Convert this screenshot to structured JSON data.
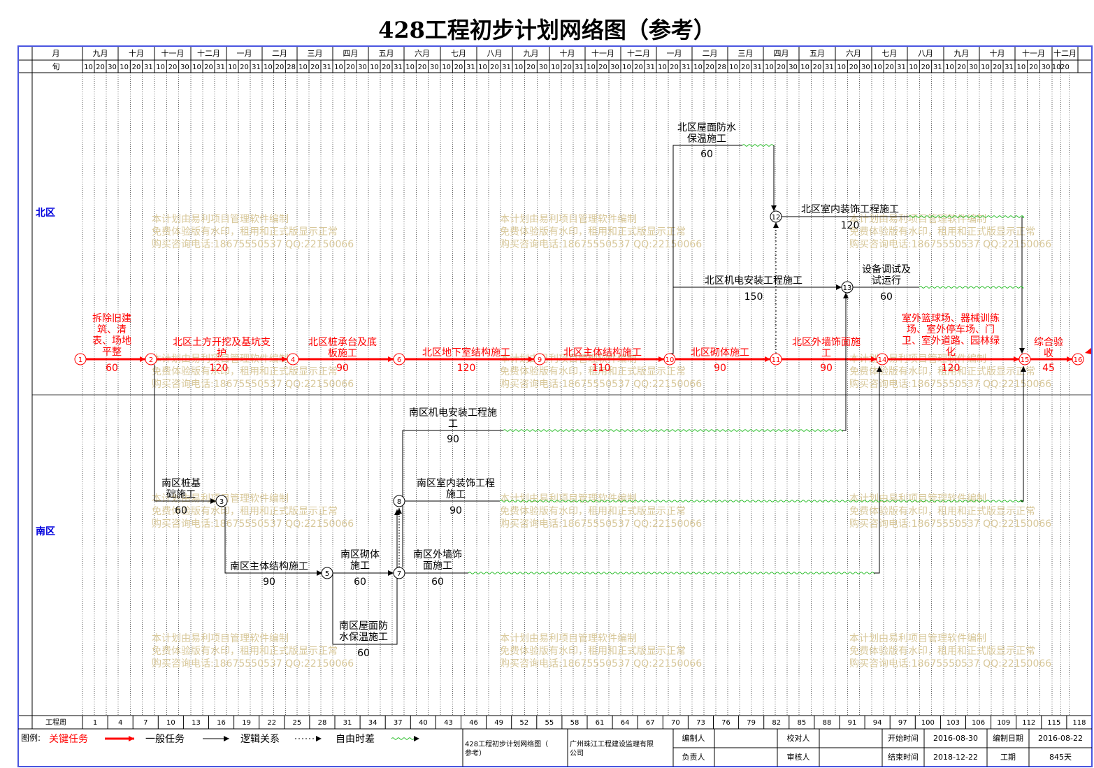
{
  "title": "428工程初步计划网络图（参考）",
  "colors": {
    "critical": "#ff0000",
    "normal": "#000000",
    "float": "#22bb22",
    "frame": "#4a55e0",
    "watermark": "#d8c89a",
    "zone_label": "#0000dd"
  },
  "header": {
    "month_row_label": "月",
    "ten_row_label": "旬",
    "months": [
      "九月",
      "十月",
      "十一月",
      "十二月",
      "一月",
      "二月",
      "三月",
      "四月",
      "五月",
      "六月",
      "七月",
      "八月",
      "九月",
      "十月",
      "十一月",
      "十二月",
      "一月",
      "二月",
      "三月",
      "四月",
      "五月",
      "六月",
      "七月",
      "八月",
      "九月",
      "十月",
      "十一月",
      "十二月"
    ],
    "tens": [
      [
        "10",
        "20",
        "30"
      ],
      [
        "10",
        "20",
        "31"
      ],
      [
        "10",
        "20",
        "30"
      ],
      [
        "10",
        "20",
        "31"
      ],
      [
        "10",
        "20",
        "31"
      ],
      [
        "10",
        "20",
        "28"
      ],
      [
        "10",
        "20",
        "31"
      ],
      [
        "10",
        "20",
        "30"
      ],
      [
        "10",
        "20",
        "31"
      ],
      [
        "10",
        "20",
        "30"
      ],
      [
        "10",
        "20",
        "31"
      ],
      [
        "10",
        "20",
        "31"
      ],
      [
        "10",
        "20",
        "30"
      ],
      [
        "10",
        "20",
        "31"
      ],
      [
        "10",
        "20",
        "30"
      ],
      [
        "10",
        "20",
        "31"
      ],
      [
        "10",
        "20",
        "31"
      ],
      [
        "10",
        "20",
        "28"
      ],
      [
        "10",
        "20",
        "31"
      ],
      [
        "10",
        "20",
        "30"
      ],
      [
        "10",
        "20",
        "31"
      ],
      [
        "10",
        "20",
        "30"
      ],
      [
        "10",
        "20",
        "31"
      ],
      [
        "10",
        "20",
        "31"
      ],
      [
        "10",
        "20",
        "30"
      ],
      [
        "10",
        "20",
        "31"
      ],
      [
        "10",
        "20",
        "30"
      ],
      [
        "10",
        "20"
      ]
    ]
  },
  "zones": {
    "north": "北区",
    "south": "南区"
  },
  "week_row": {
    "label": "工程周",
    "weeks": [
      "1",
      "4",
      "7",
      "10",
      "13",
      "16",
      "19",
      "22",
      "25",
      "28",
      "31",
      "34",
      "37",
      "40",
      "43",
      "46",
      "49",
      "52",
      "55",
      "58",
      "61",
      "64",
      "67",
      "70",
      "73",
      "76",
      "79",
      "82",
      "85",
      "88",
      "91",
      "94",
      "97",
      "100",
      "103",
      "106",
      "109",
      "112",
      "115",
      "118"
    ]
  },
  "watermark_lines": [
    "本计划由易利项目管理软件编制",
    "免费体验版有水印，租用和正式版显示正常",
    "购买咨询电话:18675550537 QQ:22150066"
  ],
  "tasks": [
    {
      "id": "t1",
      "name": [
        "拆除旧建",
        "筑、清",
        "表、场地",
        "平整"
      ],
      "dur": "60",
      "critical": true
    },
    {
      "id": "t2",
      "name": [
        "北区土方开挖及基坑支",
        "护"
      ],
      "dur": "120",
      "critical": true
    },
    {
      "id": "t3",
      "name": [
        "北区桩承台及底",
        "板施工"
      ],
      "dur": "90",
      "critical": true
    },
    {
      "id": "t4",
      "name": [
        "北区地下室结构施工"
      ],
      "dur": "120",
      "critical": true
    },
    {
      "id": "t5",
      "name": [
        "北区主体结构施工"
      ],
      "dur": "110",
      "critical": true
    },
    {
      "id": "t6",
      "name": [
        "北区砌体施工"
      ],
      "dur": "90",
      "critical": true
    },
    {
      "id": "t7",
      "name": [
        "北区外墙饰面施",
        "工"
      ],
      "dur": "90",
      "critical": true
    },
    {
      "id": "t8",
      "name": [
        "室外篮球场、器械训练",
        "场、室外停车场、门",
        "卫、室外道路、园林绿",
        "化"
      ],
      "dur": "120",
      "critical": true
    },
    {
      "id": "t9",
      "name": [
        "综合验",
        "收"
      ],
      "dur": "45",
      "critical": true
    },
    {
      "id": "t10",
      "name": [
        "北区屋面防水",
        "保温施工"
      ],
      "dur": "60",
      "critical": false
    },
    {
      "id": "t11",
      "name": [
        "北区室内装饰工程施工"
      ],
      "dur": "120",
      "critical": false
    },
    {
      "id": "t12",
      "name": [
        "北区机电安装工程施工"
      ],
      "dur": "150",
      "critical": false
    },
    {
      "id": "t13",
      "name": [
        "设备调试及",
        "试运行"
      ],
      "dur": "60",
      "critical": false
    },
    {
      "id": "t14",
      "name": [
        "南区桩基",
        "础施工"
      ],
      "dur": "60",
      "critical": false
    },
    {
      "id": "t15",
      "name": [
        "南区主体结构施工"
      ],
      "dur": "90",
      "critical": false
    },
    {
      "id": "t16",
      "name": [
        "南区砌体",
        "施工"
      ],
      "dur": "60",
      "critical": false
    },
    {
      "id": "t17",
      "name": [
        "南区屋面防",
        "水保温施工"
      ],
      "dur": "60",
      "critical": false
    },
    {
      "id": "t18",
      "name": [
        "南区机电安装工程施",
        "工"
      ],
      "dur": "90",
      "critical": false
    },
    {
      "id": "t19",
      "name": [
        "南区室内装饰工程",
        "施工"
      ],
      "dur": "90",
      "critical": false
    },
    {
      "id": "t20",
      "name": [
        "南区外墙饰",
        "面施工"
      ],
      "dur": "60",
      "critical": false
    }
  ],
  "nodes": [
    "1",
    "2",
    "3",
    "4",
    "5",
    "6",
    "7",
    "8",
    "9",
    "10",
    "11",
    "12",
    "13",
    "14",
    "15",
    "16"
  ],
  "legend": {
    "label": "图例:",
    "critical": "关键任务",
    "normal": "一般任务",
    "logic": "逻辑关系",
    "float": "自由时差"
  },
  "footer": {
    "project": "428工程初步计划网络图（参考）",
    "company": "广州珠江工程建设监理有限公司",
    "compiler_label": "编制人",
    "compiler": "",
    "checker_label": "校对人",
    "checker": "",
    "manager_label": "负责人",
    "manager": "",
    "reviewer_label": "审核人",
    "reviewer": "",
    "start_label": "开始时间",
    "start": "2016-08-30",
    "end_label": "结束时间",
    "end": "2018-12-22",
    "date_label": "编制日期",
    "date": "2016-08-22",
    "period_label": "工期",
    "period": "845天"
  }
}
